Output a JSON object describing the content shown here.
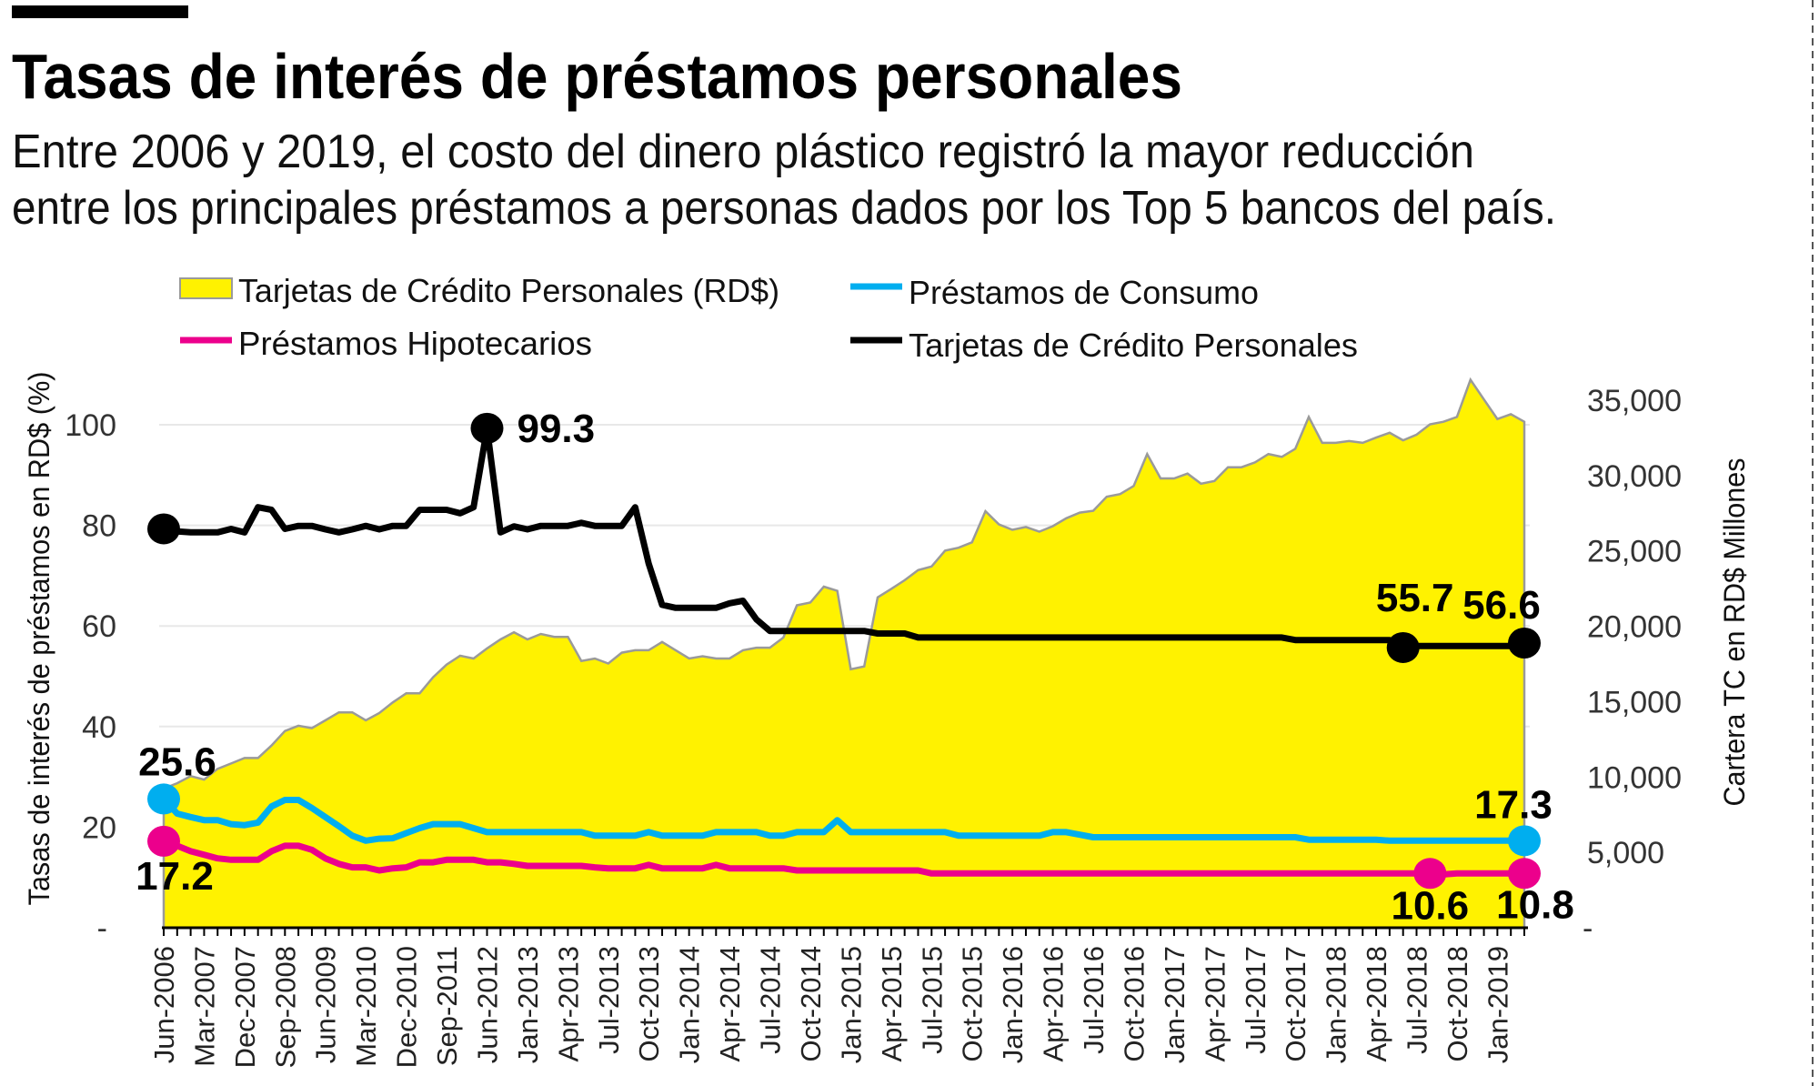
{
  "header": {
    "title": "Tasas de interés de préstamos personales",
    "subtitle_line1": "Entre 2006 y 2019, el costo del dinero plástico registró la mayor reducción",
    "subtitle_line2": "entre los principales préstamos a personas dados por los Top 5 bancos del país."
  },
  "legend": {
    "area": "Tarjetas de Crédito Personales (RD$)",
    "consumo": "Préstamos de Consumo",
    "hipotecarios": "Préstamos Hipotecarios",
    "tarjetas": "Tarjetas de Crédito Personales"
  },
  "colors": {
    "area": "#fff200",
    "area_stroke": "#9a9a9a",
    "consumo": "#00aeef",
    "hipotecarios": "#ec008c",
    "tarjetas": "#000000",
    "grid": "#e8e8e8"
  },
  "chart_data": {
    "type": "line",
    "legend_position": "top",
    "grid": true,
    "ylabel": "Tasas de interés de préstamos en RD$ (%)",
    "ylabel_right": "Cartera TC en RD$ Millones",
    "ylim": [
      0,
      100
    ],
    "ylim_right": [
      0,
      35000
    ],
    "y_ticks": [
      "-",
      "20",
      "40",
      "60",
      "80",
      "100"
    ],
    "y_ticks_right": [
      "-",
      "5,000",
      "10,000",
      "15,000",
      "20,000",
      "25,000",
      "30,000",
      "35,000"
    ],
    "x_tick_labels": [
      "Jun-2006",
      "Mar-2007",
      "Dec-2007",
      "Sep-2008",
      "Jun-2009",
      "Mar-2010",
      "Dec-2010",
      "Sep-2011",
      "Jun-2012",
      "Jan-2013",
      "Apr-2013",
      "Jul-2013",
      "Oct-2013",
      "Jan-2014",
      "Apr-2014",
      "Jul-2014",
      "Oct-2014",
      "Jan-2015",
      "Apr-2015",
      "Jul-2015",
      "Oct-2015",
      "Jan-2016",
      "Apr-2016",
      "Jul-2016",
      "Oct-2016",
      "Jan-2017",
      "Apr-2017",
      "Jul-2017",
      "Oct-2017",
      "Jan-2018",
      "Apr-2018",
      "Jul-2018",
      "Oct-2018",
      "Jan-2019"
    ],
    "x_tick_every": 3,
    "series": [
      {
        "key": "area",
        "name": "Tarjetas de Crédito Personales (RD$)",
        "type": "area",
        "axis": "right",
        "values": [
          9230,
          9590,
          10060,
          9830,
          10540,
          10900,
          11260,
          11260,
          12090,
          13050,
          13400,
          13240,
          13760,
          14290,
          14290,
          13760,
          14240,
          14950,
          15550,
          15550,
          16620,
          17460,
          18050,
          17860,
          18530,
          19130,
          19600,
          19130,
          19490,
          19300,
          19300,
          17700,
          17860,
          17530,
          18250,
          18410,
          18410,
          18960,
          18410,
          17860,
          18010,
          17860,
          17860,
          18410,
          18580,
          18580,
          19250,
          21390,
          21580,
          22630,
          22350,
          17150,
          17340,
          21920,
          22470,
          23060,
          23730,
          23970,
          25020,
          25210,
          25570,
          27640,
          26760,
          26400,
          26590,
          26280,
          26640,
          27170,
          27540,
          27660,
          28600,
          28770,
          29310,
          31430,
          29810,
          29810,
          30130,
          29460,
          29640,
          30550,
          30550,
          30870,
          31430,
          31240,
          31780,
          33890,
          32170,
          32170,
          32290,
          32170,
          32520,
          32840,
          32340,
          32710,
          33400,
          33570,
          33890,
          36360,
          35050,
          33750,
          34070,
          33570
        ]
      },
      {
        "key": "tarjetas",
        "name": "Tarjetas de Crédito Personales",
        "type": "line",
        "axis": "left",
        "values": [
          79.3,
          78.8,
          78.6,
          78.6,
          78.6,
          79.3,
          78.6,
          83.6,
          83.1,
          79.3,
          79.9,
          79.9,
          79.2,
          78.6,
          79.2,
          79.9,
          79.2,
          79.9,
          79.9,
          83.1,
          83.1,
          83.1,
          82.4,
          83.6,
          99.3,
          78.6,
          79.8,
          79.2,
          79.9,
          79.9,
          79.9,
          80.5,
          79.9,
          79.9,
          79.9,
          83.6,
          72.4,
          64.2,
          63.6,
          63.6,
          63.6,
          63.6,
          64.5,
          65.0,
          61.3,
          59.0,
          59.0,
          59.0,
          59.0,
          59.0,
          59.0,
          59.0,
          59.0,
          58.5,
          58.5,
          58.5,
          57.7,
          57.7,
          57.7,
          57.7,
          57.7,
          57.7,
          57.7,
          57.7,
          57.7,
          57.7,
          57.7,
          57.7,
          57.7,
          57.7,
          57.7,
          57.7,
          57.7,
          57.7,
          57.7,
          57.7,
          57.7,
          57.7,
          57.7,
          57.7,
          57.7,
          57.7,
          57.7,
          57.7,
          57.2,
          57.2,
          57.2,
          57.2,
          57.2,
          57.2,
          57.2,
          57.2,
          55.7,
          56.0,
          56.0,
          56.0,
          56.0,
          56.0,
          56.0,
          56.0,
          56.0,
          56.6
        ]
      },
      {
        "key": "consumo",
        "name": "Préstamos de Consumo",
        "type": "line",
        "axis": "left",
        "values": [
          25.6,
          22.7,
          22.0,
          21.4,
          21.4,
          20.6,
          20.4,
          20.9,
          24.1,
          25.4,
          25.4,
          23.8,
          22.0,
          20.2,
          18.3,
          17.3,
          17.7,
          17.8,
          18.8,
          19.8,
          20.6,
          20.6,
          20.6,
          19.8,
          19.0,
          19.0,
          19.0,
          19.0,
          19.0,
          19.0,
          19.0,
          19.0,
          18.3,
          18.3,
          18.3,
          18.3,
          19.0,
          18.3,
          18.3,
          18.3,
          18.3,
          19.0,
          19.0,
          19.0,
          19.0,
          18.3,
          18.3,
          19.0,
          19.0,
          19.0,
          21.4,
          19.0,
          19.0,
          19.0,
          19.0,
          19.0,
          19.0,
          19.0,
          19.0,
          18.3,
          18.3,
          18.3,
          18.3,
          18.3,
          18.3,
          18.3,
          19.0,
          19.0,
          18.5,
          18.0,
          18.0,
          18.0,
          18.0,
          18.0,
          18.0,
          18.0,
          18.0,
          18.0,
          18.0,
          18.0,
          18.0,
          18.0,
          18.0,
          18.0,
          18.0,
          17.5,
          17.5,
          17.5,
          17.5,
          17.5,
          17.5,
          17.3,
          17.3,
          17.3,
          17.3,
          17.3,
          17.3,
          17.3,
          17.3,
          17.3,
          17.3,
          17.3
        ]
      },
      {
        "key": "hipotecarios",
        "name": "Préstamos Hipotecarios",
        "type": "line",
        "axis": "left",
        "values": [
          17.2,
          16.3,
          15.2,
          14.5,
          13.8,
          13.5,
          13.5,
          13.5,
          15.2,
          16.3,
          16.3,
          15.5,
          13.8,
          12.7,
          12.0,
          12.0,
          11.4,
          11.8,
          12.0,
          13.0,
          13.0,
          13.5,
          13.5,
          13.5,
          13.0,
          13.0,
          12.7,
          12.3,
          12.3,
          12.3,
          12.3,
          12.3,
          12.0,
          11.8,
          11.8,
          11.8,
          12.5,
          11.8,
          11.8,
          11.8,
          11.8,
          12.5,
          11.8,
          11.8,
          11.8,
          11.8,
          11.8,
          11.4,
          11.4,
          11.4,
          11.4,
          11.4,
          11.4,
          11.4,
          11.4,
          11.4,
          11.4,
          10.8,
          10.8,
          10.8,
          10.8,
          10.8,
          10.8,
          10.8,
          10.8,
          10.8,
          10.8,
          10.8,
          10.8,
          10.8,
          10.8,
          10.8,
          10.8,
          10.8,
          10.8,
          10.8,
          10.8,
          10.8,
          10.8,
          10.8,
          10.8,
          10.8,
          10.8,
          10.8,
          10.8,
          10.8,
          10.8,
          10.8,
          10.8,
          10.8,
          10.8,
          10.8,
          10.8,
          10.8,
          10.8,
          10.6,
          10.8,
          10.8,
          10.8,
          10.8,
          10.8,
          10.8,
          10.8
        ]
      }
    ],
    "annotations": [
      {
        "series": "tarjetas",
        "point": 0,
        "text": ""
      },
      {
        "series": "tarjetas",
        "point": 24,
        "text": "99.3"
      },
      {
        "series": "consumo",
        "point": 0,
        "text": "25.6"
      },
      {
        "series": "hipotecarios",
        "point": 0,
        "text": "17.2"
      },
      {
        "series": "tarjetas",
        "point": 92,
        "text": "55.7"
      },
      {
        "series": "tarjetas",
        "point": 101,
        "text": "56.6"
      },
      {
        "series": "consumo",
        "point": 101,
        "text": "17.3"
      },
      {
        "series": "hipotecarios",
        "point": 94,
        "text": "10.6"
      },
      {
        "series": "hipotecarios",
        "point": 101,
        "text": "10.8"
      }
    ]
  }
}
